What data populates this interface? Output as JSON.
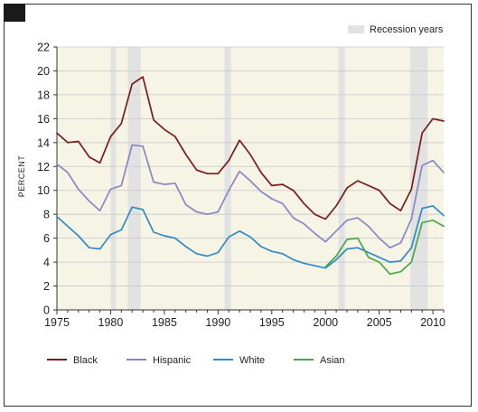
{
  "chart_data": {
    "type": "line",
    "ylabel": "PERCENT",
    "xlim": [
      1975,
      2011
    ],
    "ylim": [
      0,
      22
    ],
    "xticks": [
      1975,
      1980,
      1985,
      1990,
      1995,
      2000,
      2005,
      2010
    ],
    "yticks": [
      0,
      2,
      4,
      6,
      8,
      10,
      12,
      14,
      16,
      18,
      20,
      22
    ],
    "recession_label": "Recession years",
    "recession_color": "#e2e2e2",
    "plot_background": "#f6f4e5",
    "recessions": [
      [
        1980.0,
        1980.5
      ],
      [
        1981.6,
        1982.8
      ],
      [
        1990.6,
        1991.2
      ],
      [
        2001.2,
        2001.8
      ],
      [
        2007.9,
        2009.5
      ]
    ],
    "series": [
      {
        "name": "Black",
        "color": "#7b1a1a",
        "points": [
          [
            1975,
            14.8
          ],
          [
            1976,
            14.0
          ],
          [
            1977,
            14.1
          ],
          [
            1978,
            12.8
          ],
          [
            1979,
            12.3
          ],
          [
            1980,
            14.5
          ],
          [
            1981,
            15.6
          ],
          [
            1982,
            18.9
          ],
          [
            1983,
            19.5
          ],
          [
            1984,
            15.9
          ],
          [
            1985,
            15.1
          ],
          [
            1986,
            14.5
          ],
          [
            1987,
            13.0
          ],
          [
            1988,
            11.7
          ],
          [
            1989,
            11.4
          ],
          [
            1990,
            11.4
          ],
          [
            1991,
            12.5
          ],
          [
            1992,
            14.2
          ],
          [
            1993,
            13.0
          ],
          [
            1994,
            11.5
          ],
          [
            1995,
            10.4
          ],
          [
            1996,
            10.5
          ],
          [
            1997,
            10.0
          ],
          [
            1998,
            8.9
          ],
          [
            1999,
            8.0
          ],
          [
            2000,
            7.6
          ],
          [
            2001,
            8.7
          ],
          [
            2002,
            10.2
          ],
          [
            2003,
            10.8
          ],
          [
            2004,
            10.4
          ],
          [
            2005,
            10.0
          ],
          [
            2006,
            8.9
          ],
          [
            2007,
            8.3
          ],
          [
            2008,
            10.1
          ],
          [
            2009,
            14.8
          ],
          [
            2010,
            16.0
          ],
          [
            2011,
            15.8
          ]
        ]
      },
      {
        "name": "Hispanic",
        "color": "#8b85c8",
        "points": [
          [
            1975,
            12.2
          ],
          [
            1976,
            11.5
          ],
          [
            1977,
            10.1
          ],
          [
            1978,
            9.1
          ],
          [
            1979,
            8.3
          ],
          [
            1980,
            10.1
          ],
          [
            1981,
            10.4
          ],
          [
            1982,
            13.8
          ],
          [
            1983,
            13.7
          ],
          [
            1984,
            10.7
          ],
          [
            1985,
            10.5
          ],
          [
            1986,
            10.6
          ],
          [
            1987,
            8.8
          ],
          [
            1988,
            8.2
          ],
          [
            1989,
            8.0
          ],
          [
            1990,
            8.2
          ],
          [
            1991,
            10.0
          ],
          [
            1992,
            11.6
          ],
          [
            1993,
            10.8
          ],
          [
            1994,
            9.9
          ],
          [
            1995,
            9.3
          ],
          [
            1996,
            8.9
          ],
          [
            1997,
            7.7
          ],
          [
            1998,
            7.2
          ],
          [
            1999,
            6.4
          ],
          [
            2000,
            5.7
          ],
          [
            2001,
            6.6
          ],
          [
            2002,
            7.5
          ],
          [
            2003,
            7.7
          ],
          [
            2004,
            7.0
          ],
          [
            2005,
            6.0
          ],
          [
            2006,
            5.2
          ],
          [
            2007,
            5.6
          ],
          [
            2008,
            7.6
          ],
          [
            2009,
            12.1
          ],
          [
            2010,
            12.5
          ],
          [
            2011,
            11.5
          ]
        ]
      },
      {
        "name": "White",
        "color": "#2f8bc6",
        "points": [
          [
            1975,
            7.8
          ],
          [
            1976,
            7.0
          ],
          [
            1977,
            6.2
          ],
          [
            1978,
            5.2
          ],
          [
            1979,
            5.1
          ],
          [
            1980,
            6.3
          ],
          [
            1981,
            6.7
          ],
          [
            1982,
            8.6
          ],
          [
            1983,
            8.4
          ],
          [
            1984,
            6.5
          ],
          [
            1985,
            6.2
          ],
          [
            1986,
            6.0
          ],
          [
            1987,
            5.3
          ],
          [
            1988,
            4.7
          ],
          [
            1989,
            4.5
          ],
          [
            1990,
            4.8
          ],
          [
            1991,
            6.1
          ],
          [
            1992,
            6.6
          ],
          [
            1993,
            6.1
          ],
          [
            1994,
            5.3
          ],
          [
            1995,
            4.9
          ],
          [
            1996,
            4.7
          ],
          [
            1997,
            4.2
          ],
          [
            1998,
            3.9
          ],
          [
            1999,
            3.7
          ],
          [
            2000,
            3.5
          ],
          [
            2001,
            4.2
          ],
          [
            2002,
            5.1
          ],
          [
            2003,
            5.2
          ],
          [
            2004,
            4.8
          ],
          [
            2005,
            4.4
          ],
          [
            2006,
            4.0
          ],
          [
            2007,
            4.1
          ],
          [
            2008,
            5.2
          ],
          [
            2009,
            8.5
          ],
          [
            2010,
            8.7
          ],
          [
            2011,
            7.9
          ]
        ]
      },
      {
        "name": "Asian",
        "color": "#4aa64a",
        "points": [
          [
            2000,
            3.6
          ],
          [
            2001,
            4.5
          ],
          [
            2002,
            5.9
          ],
          [
            2003,
            6.0
          ],
          [
            2004,
            4.4
          ],
          [
            2005,
            4.0
          ],
          [
            2006,
            3.0
          ],
          [
            2007,
            3.2
          ],
          [
            2008,
            4.0
          ],
          [
            2009,
            7.3
          ],
          [
            2010,
            7.5
          ],
          [
            2011,
            7.0
          ]
        ]
      }
    ]
  }
}
